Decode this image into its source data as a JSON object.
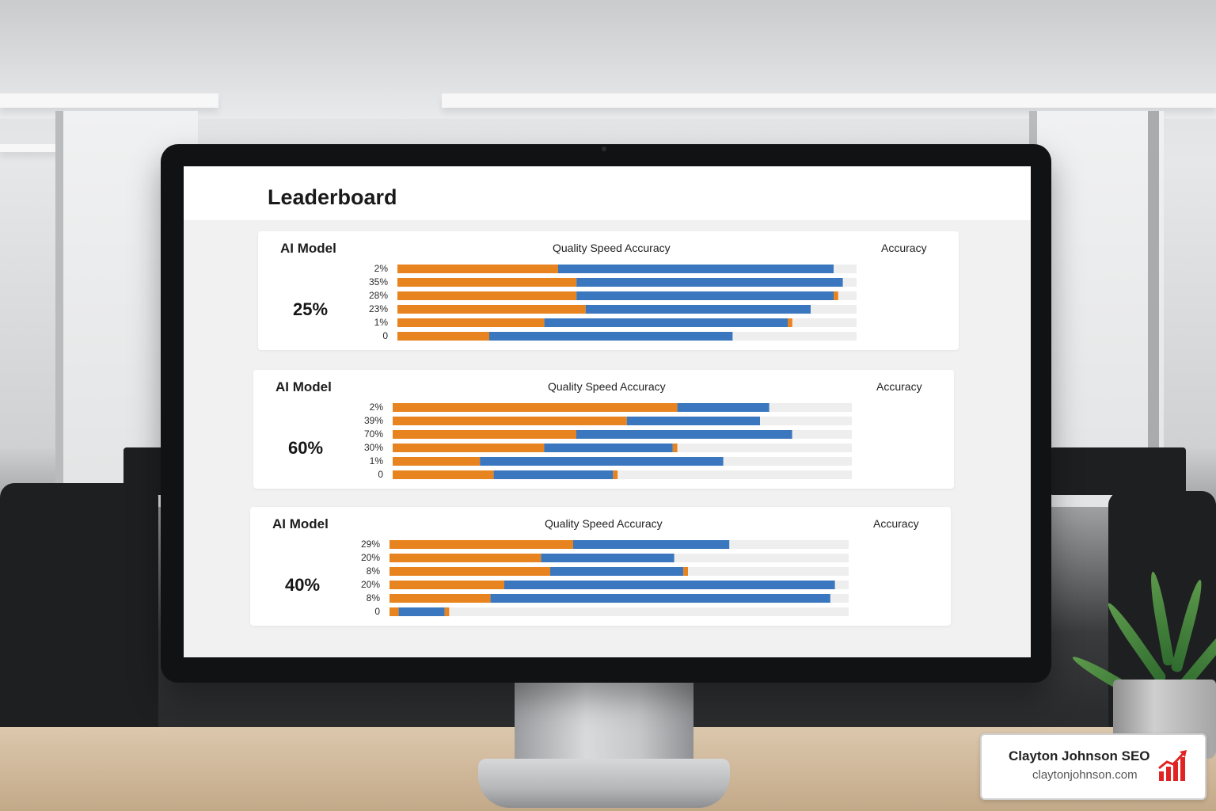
{
  "screen": {
    "title": "Leaderboard"
  },
  "colors": {
    "quality": "#e8841f",
    "speed": "#3a77bf",
    "accuracy": "#e8841f",
    "track": "#eeeeee"
  },
  "panels": [
    {
      "label": "AI Model",
      "legend": "Quality Speed Accuracy",
      "accuracy_label": "Accuracy",
      "percent": "25%",
      "tick_labels": [
        "2%",
        "35%",
        "28%",
        "23%",
        "1%",
        "0"
      ]
    },
    {
      "label": "AI Model",
      "legend": "Quality Speed Accuracy",
      "accuracy_label": "Accuracy",
      "percent": "60%",
      "tick_labels": [
        "2%",
        "39%",
        "70%",
        "30%",
        "1%",
        "0"
      ]
    },
    {
      "label": "AI Model",
      "legend": "Quality Speed Accuracy",
      "accuracy_label": "Accuracy",
      "percent": "40%",
      "tick_labels": [
        "29%",
        "20%",
        "8%",
        "20%",
        "8%",
        "0"
      ]
    }
  ],
  "chart_data": [
    {
      "type": "bar",
      "orientation": "horizontal",
      "stacked": true,
      "categories": [
        "2%",
        "35%",
        "28%",
        "23%",
        "1%",
        "0"
      ],
      "xlim": [
        0,
        100
      ],
      "series": [
        {
          "name": "Quality",
          "values": [
            35,
            39,
            39,
            41,
            32,
            20
          ]
        },
        {
          "name": "Speed",
          "values": [
            60,
            58,
            56,
            49,
            53,
            53
          ]
        },
        {
          "name": "Accuracy",
          "values": [
            0,
            0,
            1,
            0,
            1,
            0
          ]
        }
      ]
    },
    {
      "type": "bar",
      "orientation": "horizontal",
      "stacked": true,
      "categories": [
        "2%",
        "39%",
        "70%",
        "30%",
        "1%",
        "0"
      ],
      "xlim": [
        0,
        100
      ],
      "series": [
        {
          "name": "Quality",
          "values": [
            62,
            51,
            40,
            33,
            19,
            22
          ]
        },
        {
          "name": "Speed",
          "values": [
            20,
            29,
            47,
            28,
            53,
            26
          ]
        },
        {
          "name": "Accuracy",
          "values": [
            0,
            0,
            0,
            1,
            0,
            1
          ]
        }
      ]
    },
    {
      "type": "bar",
      "orientation": "horizontal",
      "stacked": true,
      "categories": [
        "29%",
        "20%",
        "8%",
        "20%",
        "8%",
        "0"
      ],
      "xlim": [
        0,
        100
      ],
      "series": [
        {
          "name": "Quality",
          "values": [
            40,
            33,
            35,
            25,
            22,
            2
          ]
        },
        {
          "name": "Speed",
          "values": [
            34,
            29,
            29,
            72,
            74,
            10
          ]
        },
        {
          "name": "Accuracy",
          "values": [
            0,
            0,
            1,
            0,
            0,
            1
          ]
        }
      ]
    }
  ],
  "brand": {
    "name": "Clayton Johnson SEO",
    "url": "claytonjohnson.com",
    "logo_color": "#e02424"
  }
}
